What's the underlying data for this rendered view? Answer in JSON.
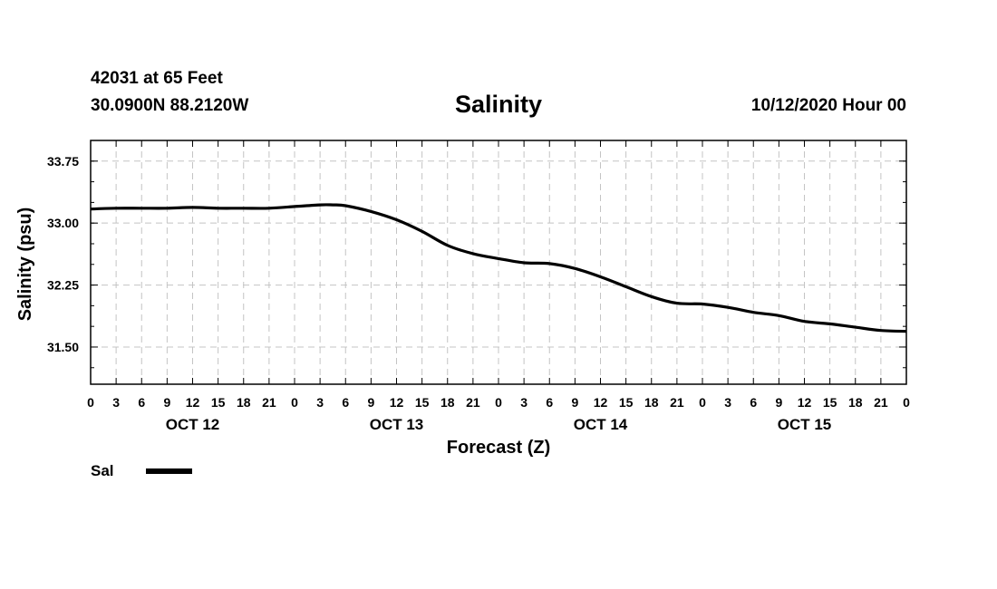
{
  "header": {
    "station": "42031 at 65 Feet",
    "coords": "30.0900N 88.2120W",
    "title": "Salinity",
    "issued": "10/12/2020 Hour 00"
  },
  "legend": {
    "label": "Sal"
  },
  "chart_data": {
    "type": "line",
    "title": "Salinity",
    "xlabel": "Forecast (Z)",
    "ylabel": "Salinity (psu)",
    "xlim": [
      0,
      96
    ],
    "ylim": [
      31.05,
      34.0
    ],
    "grid": true,
    "yticks": [
      31.5,
      32.25,
      33.0,
      33.75
    ],
    "ytick_labels": [
      "31.50",
      "32.25",
      "33.00",
      "33.75"
    ],
    "yminor_step": 0.25,
    "xticks": [
      0,
      3,
      6,
      9,
      12,
      15,
      18,
      21,
      24,
      27,
      30,
      33,
      36,
      39,
      42,
      45,
      48,
      51,
      54,
      57,
      60,
      63,
      66,
      69,
      72,
      75,
      78,
      81,
      84,
      87,
      90,
      93,
      96
    ],
    "xtick_labels": [
      "0",
      "3",
      "6",
      "9",
      "12",
      "15",
      "18",
      "21",
      "0",
      "3",
      "6",
      "9",
      "12",
      "15",
      "18",
      "21",
      "0",
      "3",
      "6",
      "9",
      "12",
      "15",
      "18",
      "21",
      "0",
      "3",
      "6",
      "9",
      "12",
      "15",
      "18",
      "21",
      "0"
    ],
    "day_labels": [
      {
        "x": 12,
        "label": "OCT 12"
      },
      {
        "x": 36,
        "label": "OCT 13"
      },
      {
        "x": 60,
        "label": "OCT 14"
      },
      {
        "x": 84,
        "label": "OCT 15"
      }
    ],
    "series": [
      {
        "name": "Sal",
        "x": [
          0,
          3,
          6,
          9,
          12,
          15,
          18,
          21,
          24,
          27,
          28.5,
          30,
          33,
          36,
          39,
          42,
          45,
          48,
          51,
          54,
          57,
          60,
          63,
          66,
          69,
          72,
          75,
          78,
          81,
          84,
          87,
          90,
          93,
          96
        ],
        "values": [
          33.17,
          33.18,
          33.18,
          33.18,
          33.19,
          33.18,
          33.18,
          33.18,
          33.2,
          33.22,
          33.22,
          33.21,
          33.14,
          33.04,
          32.9,
          32.73,
          32.63,
          32.57,
          32.52,
          32.51,
          32.45,
          32.35,
          32.23,
          32.11,
          32.03,
          32.02,
          31.98,
          31.92,
          31.88,
          31.81,
          31.78,
          31.74,
          31.7,
          31.69
        ]
      }
    ]
  }
}
